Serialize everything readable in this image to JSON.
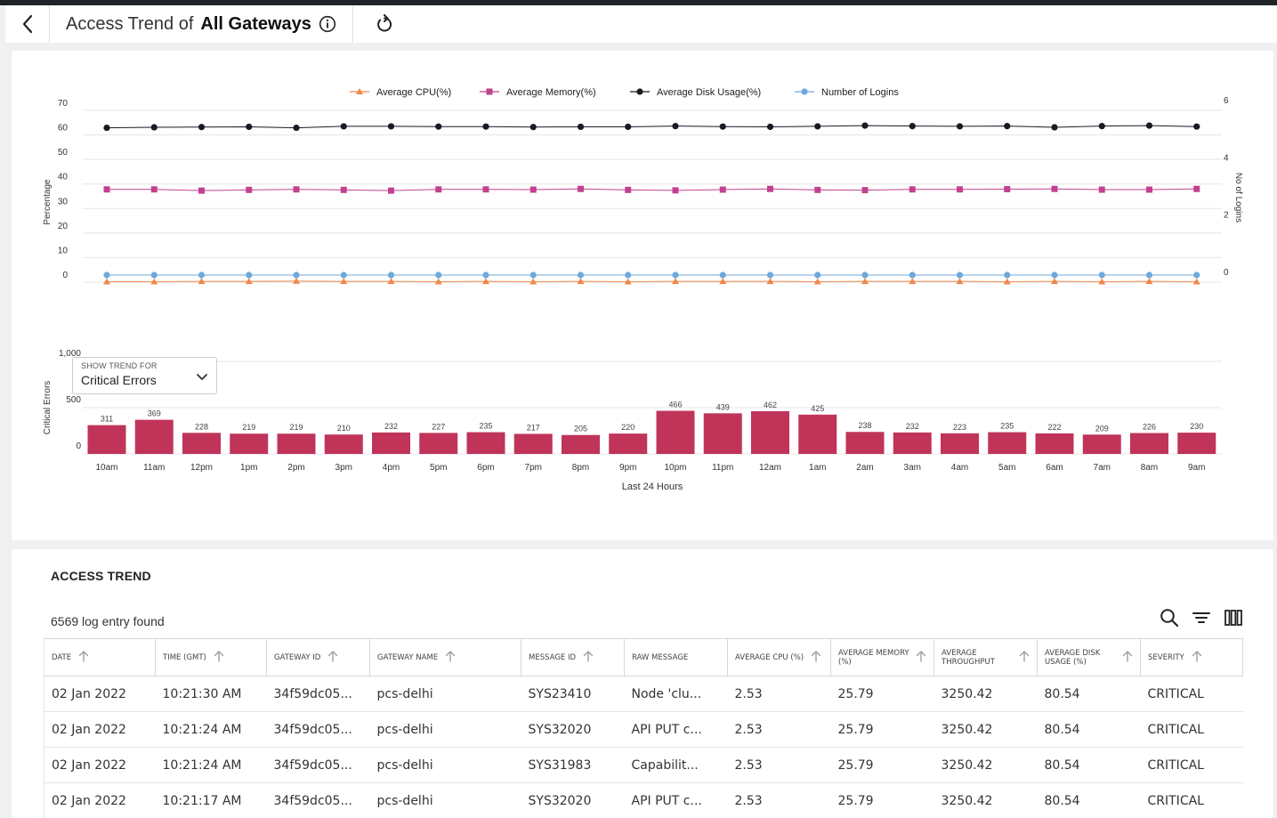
{
  "header": {
    "title_prefix": "Access Trend of",
    "title_main": "All Gateways"
  },
  "trend_selector": {
    "label": "SHOW TREND FOR",
    "value": "Critical Errors"
  },
  "chart_data": [
    {
      "type": "line",
      "x": [
        "10am",
        "11am",
        "12pm",
        "1pm",
        "2pm",
        "3pm",
        "4pm",
        "5pm",
        "6pm",
        "7pm",
        "8pm",
        "9pm",
        "10pm",
        "11pm",
        "12am",
        "1am",
        "2am",
        "3am",
        "4am",
        "5am",
        "6am",
        "7am",
        "8am",
        "9am"
      ],
      "series": [
        {
          "name": "Average CPU(%)",
          "axis": "left",
          "color": "#f0884a",
          "marker": "triangle",
          "values": [
            0.2,
            0.2,
            0.3,
            0.3,
            0.4,
            0.3,
            0.3,
            0.2,
            0.3,
            0.2,
            0.3,
            0.2,
            0.3,
            0.3,
            0.3,
            0.2,
            0.3,
            0.3,
            0.3,
            0.2,
            0.3,
            0.2,
            0.3,
            0.2
          ]
        },
        {
          "name": "Average Memory(%)",
          "axis": "left",
          "color": "#c2418f",
          "marker": "square",
          "values": [
            37.8,
            37.8,
            37.3,
            37.6,
            37.8,
            37.6,
            37.3,
            37.8,
            37.8,
            37.7,
            38.0,
            37.6,
            37.4,
            37.7,
            38.0,
            37.6,
            37.5,
            37.8,
            37.8,
            37.9,
            38.0,
            37.7,
            37.7,
            38.0
          ]
        },
        {
          "name": "Average Disk Usage(%)",
          "axis": "left",
          "color": "#1a1a24",
          "marker": "circle",
          "values": [
            62.9,
            63.1,
            63.2,
            63.3,
            62.9,
            63.5,
            63.5,
            63.4,
            63.4,
            63.2,
            63.3,
            63.3,
            63.6,
            63.4,
            63.3,
            63.5,
            63.8,
            63.6,
            63.5,
            63.6,
            63.1,
            63.6,
            63.8,
            63.4
          ]
        },
        {
          "name": "Number of Logins",
          "axis": "right",
          "color": "#6fa8dc",
          "marker": "circle",
          "values": [
            0,
            0,
            0,
            0,
            0,
            0,
            0,
            0,
            0,
            0,
            0,
            0,
            0,
            0,
            0,
            0,
            0,
            0,
            0,
            0,
            0,
            0,
            0,
            0
          ]
        }
      ],
      "ylabel": "Percentage",
      "ylim": [
        0,
        70
      ],
      "yticks": [
        "70",
        "60",
        "50",
        "40",
        "30",
        "20",
        "10",
        "0"
      ],
      "y2label": "No of Logins",
      "y2lim": [
        0,
        6
      ],
      "y2ticks": [
        "6",
        "4",
        "2",
        "0"
      ],
      "legend": "top-center",
      "grid": true
    },
    {
      "type": "bar",
      "categories": [
        "10am",
        "11am",
        "12pm",
        "1pm",
        "2pm",
        "3pm",
        "4pm",
        "5pm",
        "6pm",
        "7pm",
        "8pm",
        "9pm",
        "10pm",
        "11pm",
        "12am",
        "1am",
        "2am",
        "3am",
        "4am",
        "5am",
        "6am",
        "7am",
        "8am",
        "9am"
      ],
      "values": [
        311,
        369,
        228,
        219,
        219,
        210,
        232,
        227,
        235,
        217,
        205,
        220,
        466,
        439,
        462,
        425,
        238,
        232,
        223,
        235,
        222,
        209,
        226,
        230
      ],
      "color": "#c0345a",
      "ylabel": "Critical Errors",
      "xlabel": "Last 24 Hours",
      "ylim": [
        0,
        1000
      ],
      "yticks": [
        "1,000",
        "500",
        "0"
      ],
      "grid": true
    }
  ],
  "access_trend": {
    "title": "ACCESS TREND",
    "count_text": "6569 log entry found",
    "columns": [
      {
        "label": "DATE",
        "sortable": true
      },
      {
        "label": "TIME (GMT)",
        "sortable": true
      },
      {
        "label": "GATEWAY ID",
        "sortable": true
      },
      {
        "label": "GATEWAY NAME",
        "sortable": true
      },
      {
        "label": "MESSAGE ID",
        "sortable": true
      },
      {
        "label": "RAW MESSAGE",
        "sortable": false
      },
      {
        "label": "AVERAGE CPU (%)",
        "sortable": true
      },
      {
        "label": "AVERAGE MEMORY (%)",
        "sortable": true
      },
      {
        "label": "AVERAGE THROUGHPUT",
        "sortable": true
      },
      {
        "label": "AVERAGE DISK USAGE (%)",
        "sortable": true
      },
      {
        "label": "SEVERITY",
        "sortable": true
      }
    ],
    "rows": [
      [
        "02 Jan 2022",
        "10:21:30 AM",
        "34f59dc05...",
        "pcs-delhi",
        "SYS23410",
        "Node 'clu...",
        "2.53",
        "25.79",
        "3250.42",
        "80.54",
        "CRITICAL"
      ],
      [
        "02 Jan 2022",
        "10:21:24 AM",
        "34f59dc05...",
        "pcs-delhi",
        "SYS32020",
        "API PUT c...",
        "2.53",
        "25.79",
        "3250.42",
        "80.54",
        "CRITICAL"
      ],
      [
        "02 Jan 2022",
        "10:21:24 AM",
        "34f59dc05...",
        "pcs-delhi",
        "SYS31983",
        "Capabilit...",
        "2.53",
        "25.79",
        "3250.42",
        "80.54",
        "CRITICAL"
      ],
      [
        "02 Jan 2022",
        "10:21:17 AM",
        "34f59dc05...",
        "pcs-delhi",
        "SYS32020",
        "API PUT c...",
        "2.53",
        "25.79",
        "3250.42",
        "80.54",
        "CRITICAL"
      ]
    ]
  },
  "icons": {
    "back": "chevron-left-icon",
    "info": "info-icon",
    "refresh": "refresh-icon",
    "dropdown": "chevron-down-icon",
    "sort": "arrow-up-icon",
    "search": "search-icon",
    "filter": "filter-icon",
    "columns": "columns-icon"
  }
}
